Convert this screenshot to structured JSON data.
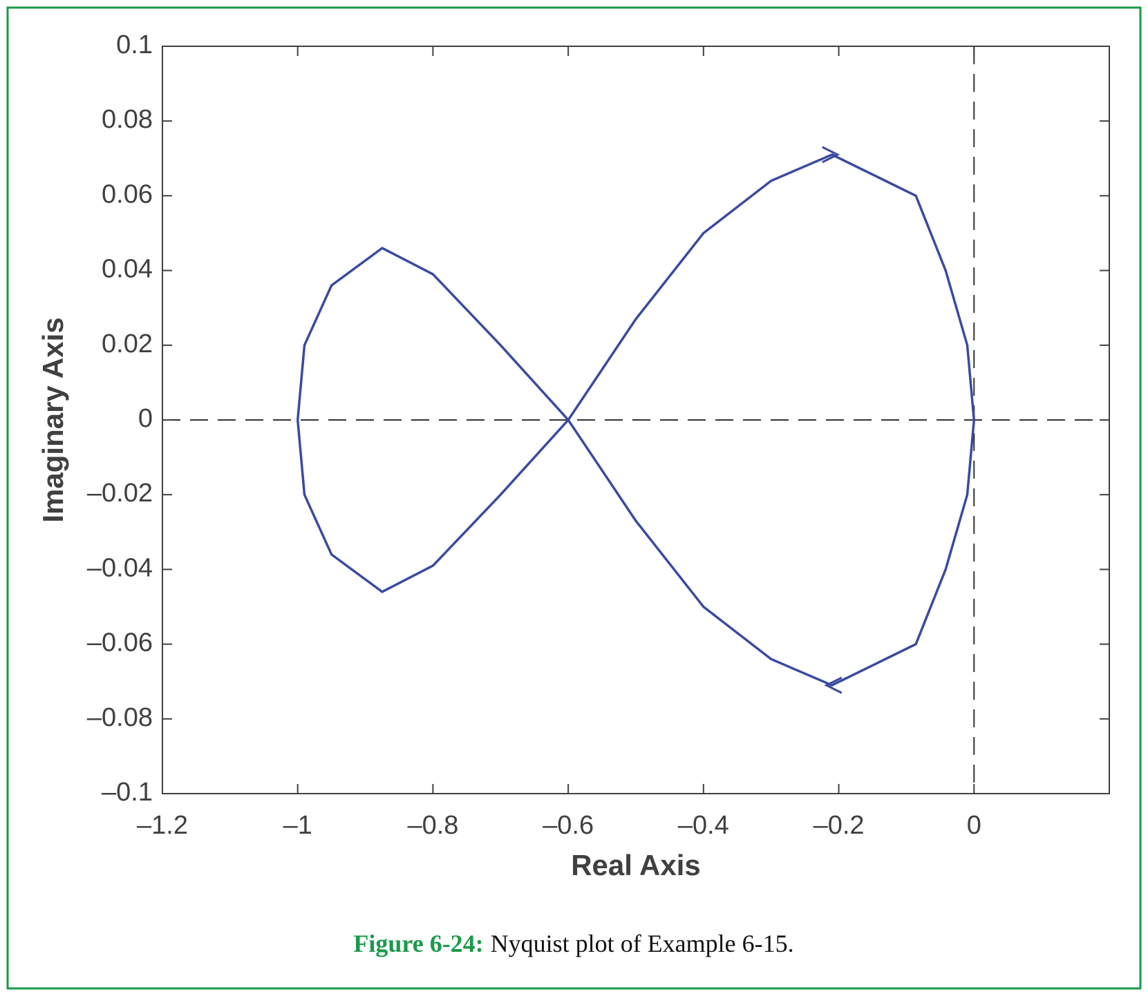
{
  "chart_data": {
    "type": "line",
    "x_label": "Real Axis",
    "y_label": "Imaginary Axis",
    "caption_label": "Figure 6-24:",
    "caption_text": "Nyquist plot of Example 6-15.",
    "xlim": [
      -1.2,
      0.2
    ],
    "ylim": [
      -0.1,
      0.1
    ],
    "xticks": [
      {
        "value": -1.2,
        "label": "–1.2"
      },
      {
        "value": -1,
        "label": "–1"
      },
      {
        "value": -0.8,
        "label": "–0.8"
      },
      {
        "value": -0.6,
        "label": "–0.6"
      },
      {
        "value": -0.4,
        "label": "–0.4"
      },
      {
        "value": -0.2,
        "label": "–0.2"
      },
      0
    ],
    "yticks": [
      {
        "value": -0.1,
        "label": "–0.1"
      },
      {
        "value": -0.08,
        "label": "–0.08"
      },
      {
        "value": -0.06,
        "label": "–0.06"
      },
      {
        "value": -0.04,
        "label": "–0.04"
      },
      {
        "value": -0.02,
        "label": "–0.02"
      },
      0,
      0.02,
      0.04,
      0.06,
      0.08,
      0.1
    ],
    "series": [
      {
        "color": "#3a4aa0",
        "x": [
          0,
          -0.01,
          -0.042,
          -0.086,
          -0.21,
          -0.3,
          -0.4,
          -0.5,
          -0.6,
          -0.7,
          -0.8,
          -0.875,
          -0.95,
          -0.99,
          -1,
          -0.99,
          -0.95,
          -0.875,
          -0.8,
          -0.7,
          -0.6,
          -0.5,
          -0.4,
          -0.3,
          -0.21,
          -0.086,
          -0.042,
          -0.01,
          0
        ],
        "values": [
          0,
          -0.02,
          -0.04,
          -0.06,
          -0.071,
          -0.064,
          -0.05,
          -0.027,
          0,
          0.02,
          0.039,
          0.046,
          0.036,
          0.02,
          0,
          -0.02,
          -0.036,
          -0.046,
          -0.039,
          -0.02,
          0,
          0.027,
          0.05,
          0.064,
          0.071,
          0.06,
          0.04,
          0.02,
          0
        ]
      }
    ]
  }
}
